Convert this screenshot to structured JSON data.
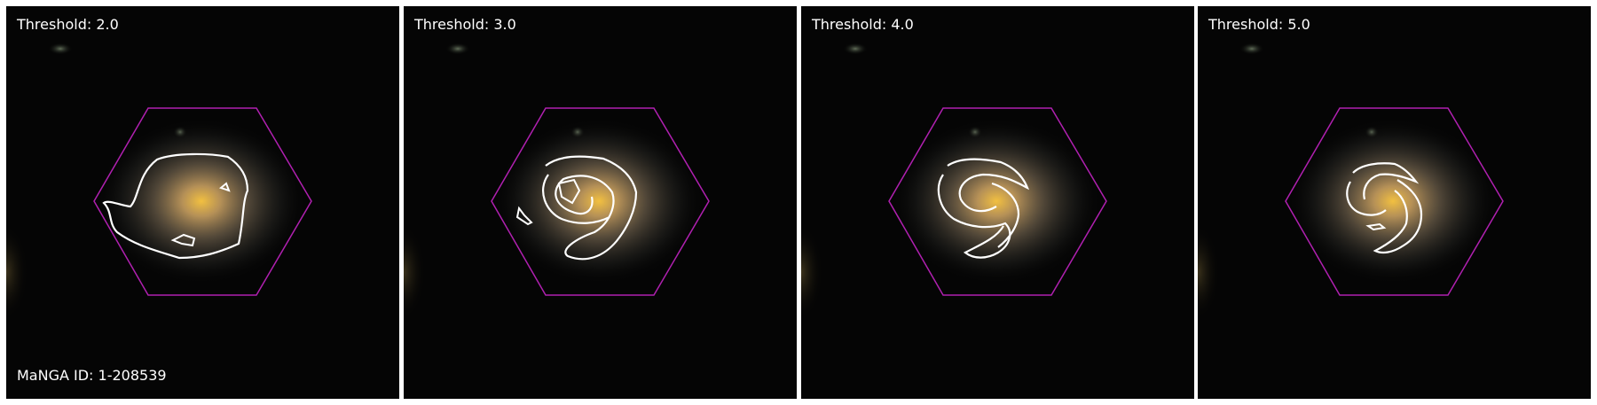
{
  "panels": [
    {
      "label": "Threshold: 2.0"
    },
    {
      "label": "Threshold: 3.0"
    },
    {
      "label": "Threshold: 4.0"
    },
    {
      "label": "Threshold: 5.0"
    }
  ],
  "manga_id_label": "MaNGA ID: 1-208539",
  "colors": {
    "hexagon": "#b020b0",
    "contour": "#ffffff",
    "background": "#050505",
    "galaxy_core": "#e8b440"
  }
}
